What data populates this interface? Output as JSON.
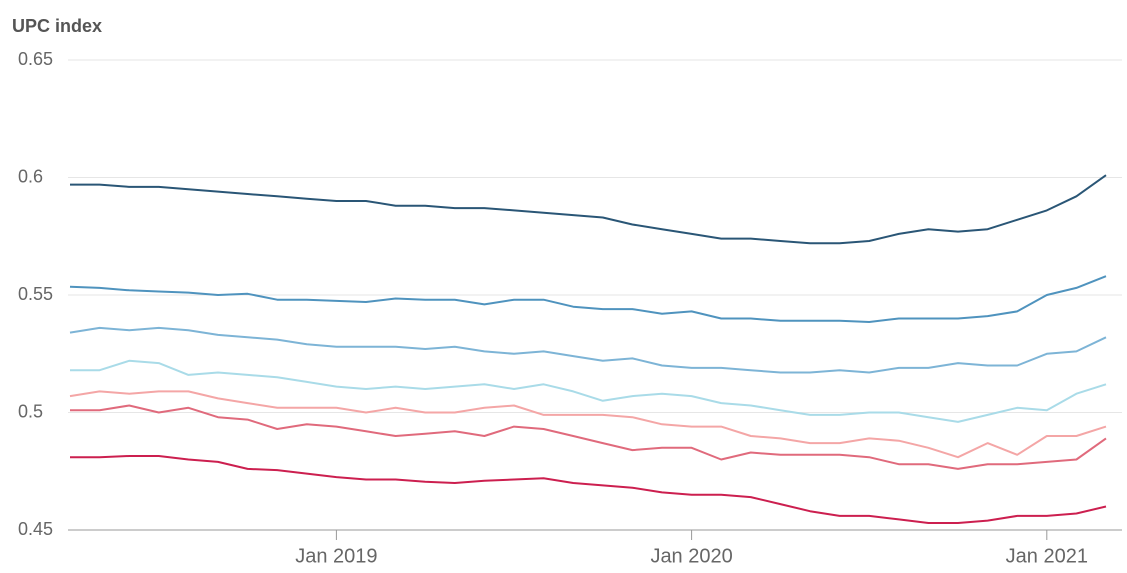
{
  "chart_data": {
    "type": "line",
    "title": "UPC index",
    "x": [
      "2018-04",
      "2018-05",
      "2018-06",
      "2018-07",
      "2018-08",
      "2018-09",
      "2018-10",
      "2018-11",
      "2018-12",
      "2019-01",
      "2019-02",
      "2019-03",
      "2019-04",
      "2019-05",
      "2019-06",
      "2019-07",
      "2019-08",
      "2019-09",
      "2019-10",
      "2019-11",
      "2019-12",
      "2020-01",
      "2020-02",
      "2020-03",
      "2020-04",
      "2020-05",
      "2020-06",
      "2020-07",
      "2020-08",
      "2020-09",
      "2020-10",
      "2020-11",
      "2020-12",
      "2021-01",
      "2021-02",
      "2021-03"
    ],
    "series": [
      {
        "color": "#2a5676",
        "values": [
          0.597,
          0.597,
          0.596,
          0.596,
          0.595,
          0.594,
          0.593,
          0.592,
          0.591,
          0.59,
          0.59,
          0.588,
          0.588,
          0.587,
          0.587,
          0.586,
          0.585,
          0.584,
          0.583,
          0.58,
          0.578,
          0.576,
          0.574,
          0.574,
          0.573,
          0.572,
          0.572,
          0.573,
          0.576,
          0.578,
          0.577,
          0.578,
          0.582,
          0.586,
          0.592,
          0.601
        ]
      },
      {
        "color": "#4f93be",
        "values": [
          0.5535,
          0.553,
          0.552,
          0.5515,
          0.551,
          0.55,
          0.5505,
          0.548,
          0.548,
          0.5475,
          0.547,
          0.5485,
          0.548,
          0.548,
          0.546,
          0.548,
          0.548,
          0.545,
          0.544,
          0.544,
          0.542,
          0.543,
          0.54,
          0.54,
          0.539,
          0.539,
          0.539,
          0.5385,
          0.54,
          0.54,
          0.54,
          0.541,
          0.543,
          0.55,
          0.553,
          0.558
        ]
      },
      {
        "color": "#7db4d6",
        "values": [
          0.534,
          0.536,
          0.535,
          0.536,
          0.535,
          0.533,
          0.532,
          0.531,
          0.529,
          0.528,
          0.528,
          0.528,
          0.527,
          0.528,
          0.526,
          0.525,
          0.526,
          0.524,
          0.522,
          0.523,
          0.52,
          0.519,
          0.519,
          0.518,
          0.517,
          0.517,
          0.518,
          0.517,
          0.519,
          0.519,
          0.521,
          0.52,
          0.52,
          0.525,
          0.526,
          0.532
        ]
      },
      {
        "color": "#a9dbe8",
        "values": [
          0.518,
          0.518,
          0.522,
          0.521,
          0.516,
          0.517,
          0.516,
          0.515,
          0.513,
          0.511,
          0.51,
          0.511,
          0.51,
          0.511,
          0.512,
          0.51,
          0.512,
          0.509,
          0.505,
          0.507,
          0.508,
          0.507,
          0.504,
          0.503,
          0.501,
          0.499,
          0.499,
          0.5,
          0.5,
          0.498,
          0.496,
          0.499,
          0.502,
          0.501,
          0.508,
          0.512
        ]
      },
      {
        "color": "#f4a6a6",
        "values": [
          0.507,
          0.509,
          0.508,
          0.509,
          0.509,
          0.506,
          0.504,
          0.502,
          0.502,
          0.502,
          0.5,
          0.502,
          0.5,
          0.5,
          0.502,
          0.503,
          0.499,
          0.499,
          0.499,
          0.498,
          0.495,
          0.494,
          0.494,
          0.49,
          0.489,
          0.487,
          0.487,
          0.489,
          0.488,
          0.485,
          0.481,
          0.487,
          0.482,
          0.49,
          0.49,
          0.494
        ]
      },
      {
        "color": "#e06a7c",
        "values": [
          0.501,
          0.501,
          0.503,
          0.5,
          0.502,
          0.498,
          0.497,
          0.493,
          0.495,
          0.494,
          0.492,
          0.49,
          0.491,
          0.492,
          0.49,
          0.494,
          0.493,
          0.49,
          0.487,
          0.484,
          0.485,
          0.485,
          0.48,
          0.483,
          0.482,
          0.482,
          0.482,
          0.481,
          0.478,
          0.478,
          0.476,
          0.478,
          0.478,
          0.479,
          0.48,
          0.489
        ]
      },
      {
        "color": "#cc1f4f",
        "values": [
          0.481,
          0.481,
          0.4815,
          0.4815,
          0.48,
          0.479,
          0.476,
          0.4755,
          0.474,
          0.4725,
          0.4715,
          0.4715,
          0.4705,
          0.47,
          0.471,
          0.4715,
          0.472,
          0.47,
          0.469,
          0.468,
          0.466,
          0.465,
          0.465,
          0.464,
          0.461,
          0.458,
          0.456,
          0.456,
          0.4545,
          0.453,
          0.453,
          0.454,
          0.456,
          0.456,
          0.457,
          0.46
        ]
      }
    ],
    "xlim": [
      "2018-04",
      "2021-03"
    ],
    "xticks": [
      {
        "value": "2019-01",
        "label": "Jan 2019"
      },
      {
        "value": "2020-01",
        "label": "Jan 2020"
      },
      {
        "value": "2021-01",
        "label": "Jan 2021"
      }
    ],
    "ylim": [
      0.45,
      0.65
    ],
    "yticks": [
      0.45,
      0.5,
      0.55,
      0.6,
      0.65
    ],
    "grid": true
  }
}
